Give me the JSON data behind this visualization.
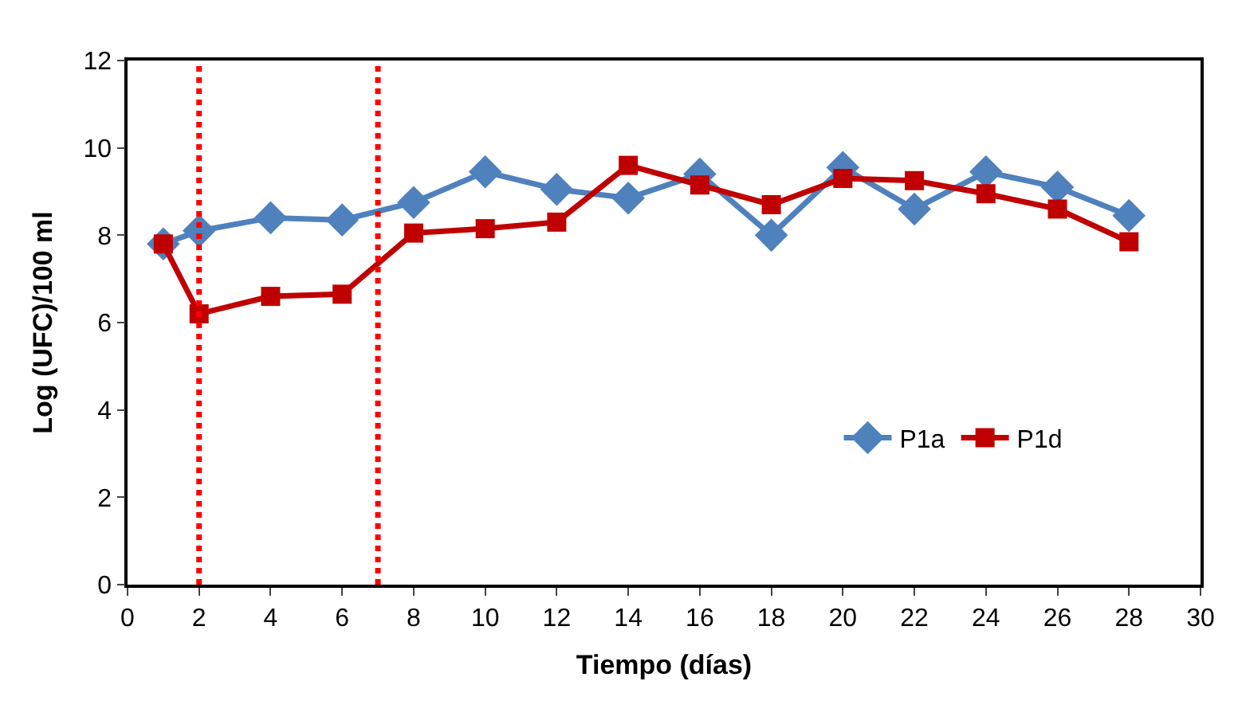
{
  "chart_data": {
    "type": "line",
    "xlabel": "Tiempo (días)",
    "ylabel": "Log (UFC)/100 ml",
    "x": [
      1,
      2,
      4,
      6,
      8,
      10,
      12,
      14,
      16,
      18,
      20,
      22,
      24,
      26,
      28
    ],
    "series": [
      {
        "name": "P1a",
        "color": "#4f81bd",
        "marker": "diamond",
        "values": [
          7.8,
          8.1,
          8.4,
          8.35,
          8.75,
          9.45,
          9.05,
          8.85,
          9.4,
          8.0,
          9.55,
          8.6,
          9.45,
          9.1,
          8.45
        ]
      },
      {
        "name": "P1d",
        "color": "#c00000",
        "marker": "square",
        "values": [
          7.8,
          6.2,
          6.6,
          6.65,
          8.05,
          8.15,
          8.3,
          9.6,
          9.15,
          8.7,
          9.3,
          9.25,
          8.95,
          8.6,
          7.85
        ]
      }
    ],
    "xlim": [
      0,
      30
    ],
    "xticks": [
      0,
      2,
      4,
      6,
      8,
      10,
      12,
      14,
      16,
      18,
      20,
      22,
      24,
      26,
      28,
      30
    ],
    "ylim": [
      0,
      12
    ],
    "yticks": [
      0,
      2,
      4,
      6,
      8,
      10,
      12
    ],
    "ref_lines": [
      {
        "axis": "x",
        "value": 2,
        "label": null,
        "color": "#ff0000",
        "line_style": "dotted"
      },
      {
        "axis": "x",
        "value": 7,
        "label": null,
        "color": "#ff0000",
        "line_style": "dotted"
      }
    ],
    "legend": "center right",
    "line_style": "solid"
  }
}
